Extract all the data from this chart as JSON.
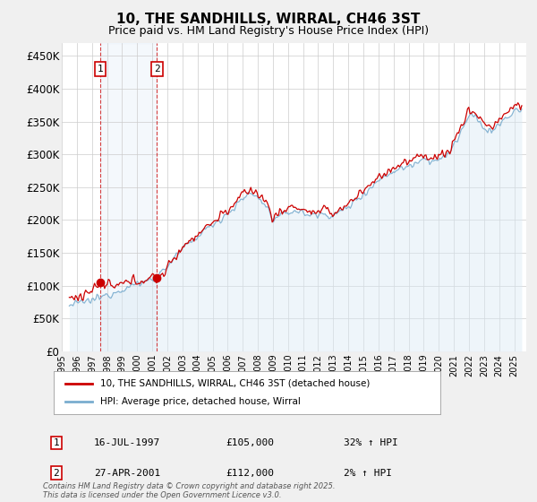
{
  "title": "10, THE SANDHILLS, WIRRAL, CH46 3ST",
  "subtitle": "Price paid vs. HM Land Registry's House Price Index (HPI)",
  "ylabel_values": [
    "£0",
    "£50K",
    "£100K",
    "£150K",
    "£200K",
    "£250K",
    "£300K",
    "£350K",
    "£400K",
    "£450K"
  ],
  "yticks": [
    0,
    50000,
    100000,
    150000,
    200000,
    250000,
    300000,
    350000,
    400000,
    450000
  ],
  "ylim": [
    0,
    470000
  ],
  "xlim_start": 1995.3,
  "xlim_end": 2025.8,
  "xtick_years": [
    1995,
    1996,
    1997,
    1998,
    1999,
    2000,
    2001,
    2002,
    2003,
    2004,
    2005,
    2006,
    2007,
    2008,
    2009,
    2010,
    2011,
    2012,
    2013,
    2014,
    2015,
    2016,
    2017,
    2018,
    2019,
    2020,
    2021,
    2022,
    2023,
    2024,
    2025
  ],
  "purchase1_date": 1997.54,
  "purchase1_price": 105000,
  "purchase1_label": "1",
  "purchase1_hpi": "32% ↑ HPI",
  "purchase1_date_str": "16-JUL-1997",
  "purchase2_date": 2001.32,
  "purchase2_price": 112000,
  "purchase2_label": "2",
  "purchase2_hpi": "2% ↑ HPI",
  "purchase2_date_str": "27-APR-2001",
  "red_line_color": "#cc0000",
  "blue_line_color": "#7aadcf",
  "blue_fill_color": "#daeaf5",
  "background_color": "#f0f0f0",
  "plot_bg_color": "#ffffff",
  "grid_color": "#cccccc",
  "title_fontsize": 11,
  "subtitle_fontsize": 9,
  "legend_label1": "10, THE SANDHILLS, WIRRAL, CH46 3ST (detached house)",
  "legend_label2": "HPI: Average price, detached house, Wirral",
  "footer": "Contains HM Land Registry data © Crown copyright and database right 2025.\nThis data is licensed under the Open Government Licence v3.0."
}
